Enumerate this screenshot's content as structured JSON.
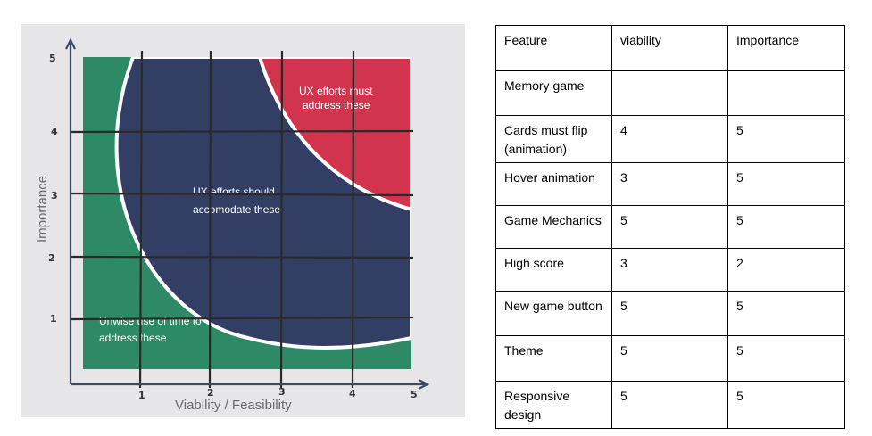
{
  "diagram": {
    "zones": {
      "red": {
        "line1": "UX efforts must",
        "line2": "address these",
        "color": "#d2334d"
      },
      "blue": {
        "line1": "UX efforts should",
        "line2": "accomodate these",
        "color": "#333e64"
      },
      "green": {
        "line1": "Unwise use of time to",
        "line2": "address these",
        "color": "#2e8a66"
      }
    },
    "x_axis_title": "Viability / Feasibility",
    "y_axis_title": "Importance",
    "x_ticks": [
      "1",
      "2",
      "3",
      "4",
      "5"
    ],
    "y_ticks": [
      "1",
      "2",
      "3",
      "4",
      "5"
    ]
  },
  "table": {
    "headers": [
      "Feature",
      "viability",
      "Importance"
    ],
    "rows": [
      {
        "feature": "Memory game",
        "viability": "",
        "importance": ""
      },
      {
        "feature": "Cards must flip (animation)",
        "viability": "4",
        "importance": "5"
      },
      {
        "feature": "Hover animation",
        "viability": "3",
        "importance": "5"
      },
      {
        "feature": "Game Mechanics",
        "viability": "5",
        "importance": "5"
      },
      {
        "feature": "High score",
        "viability": "3",
        "importance": "2"
      },
      {
        "feature": "New game button",
        "viability": "5",
        "importance": "5"
      },
      {
        "feature": "Theme",
        "viability": "5",
        "importance": "5"
      },
      {
        "feature": "Responsive design",
        "viability": "5",
        "importance": "5"
      }
    ]
  }
}
